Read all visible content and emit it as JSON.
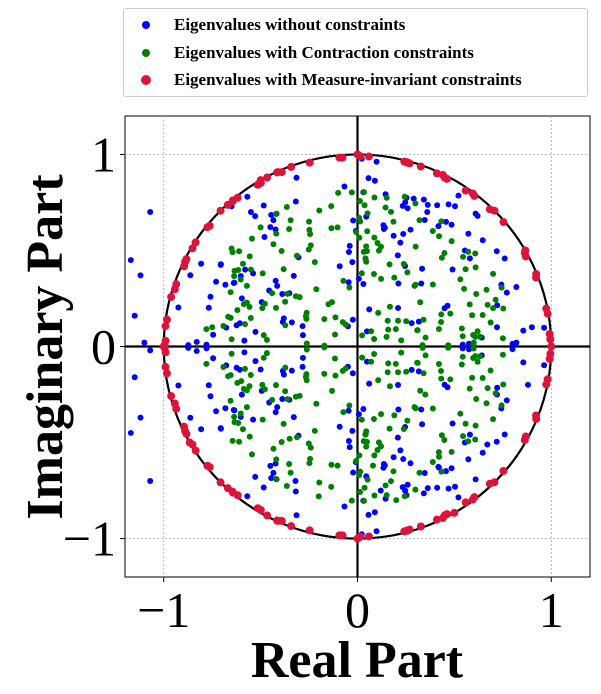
{
  "chart_data": {
    "type": "scatter",
    "title": "",
    "xlabel": "Real Part",
    "ylabel": "Imaginary Part",
    "xlim": [
      -1.2,
      1.2
    ],
    "ylim": [
      -1.2,
      1.2
    ],
    "xticks": [
      {
        "value": -1,
        "label": "−1"
      },
      {
        "value": 0,
        "label": "0"
      },
      {
        "value": 1,
        "label": "1"
      }
    ],
    "yticks": [
      {
        "value": -1,
        "label": "−1"
      },
      {
        "value": 0,
        "label": "0"
      },
      {
        "value": 1,
        "label": "1"
      }
    ],
    "grid": true,
    "unit_circle": true,
    "legend_position": "top (above plot)",
    "series": [
      {
        "name": "Eigenvalues without constraints",
        "color": "#0000ff",
        "approx_count": 260,
        "distribution": "roughly uniform inside the unit disk, symmetric about the real axis; sparse outliers near real part -1.1",
        "points": [
          [
            -1.07,
            0.7
          ],
          [
            -1.17,
            0.45
          ],
          [
            -1.12,
            0.37
          ],
          [
            -1.15,
            0.16
          ],
          [
            -1.1,
            0.02
          ],
          [
            -1.07,
            -0.02
          ],
          [
            -1.15,
            -0.16
          ],
          [
            -1.12,
            -0.37
          ],
          [
            -1.17,
            -0.45
          ],
          [
            -1.07,
            -0.7
          ],
          [
            -0.65,
            0.73
          ],
          [
            -0.55,
            0.7
          ],
          [
            -0.48,
            0.57
          ],
          [
            0.29,
            0.77
          ],
          [
            0.36,
            0.7
          ],
          [
            0.62,
            0.68
          ],
          [
            0.82,
            0.31
          ],
          [
            0.72,
            0.1
          ],
          [
            0.82,
            0.02
          ],
          [
            0.67,
            -0.51
          ],
          [
            -0.32,
            -0.7
          ],
          [
            0.12,
            -0.75
          ],
          [
            0.42,
            -0.63
          ],
          [
            0.72,
            -0.25
          ],
          [
            -0.58,
            0.4
          ],
          [
            -0.5,
            -0.12
          ],
          [
            0.9,
            0.1
          ],
          [
            0.88,
            -0.2
          ]
        ]
      },
      {
        "name": "Eigenvalues with Contraction constraints",
        "color": "#008000",
        "approx_count": 330,
        "distribution": "uniform inside a disk of radius about 0.82, symmetric about the real axis",
        "points": [
          [
            -0.65,
            0.51
          ],
          [
            -0.55,
            0.4
          ],
          [
            -0.25,
            0.65
          ],
          [
            -0.1,
            0.8
          ],
          [
            0.05,
            0.6
          ],
          [
            0.3,
            0.52
          ],
          [
            0.55,
            0.3
          ],
          [
            0.7,
            0.2
          ],
          [
            0.6,
            0.02
          ],
          [
            0.35,
            -0.25
          ],
          [
            0.08,
            -0.62
          ],
          [
            -0.35,
            -0.48
          ],
          [
            -0.6,
            -0.18
          ],
          [
            -0.75,
            0.1
          ],
          [
            0.15,
            0.05
          ],
          [
            -0.15,
            0.22
          ],
          [
            0.42,
            -0.55
          ],
          [
            -0.5,
            0.62
          ],
          [
            0.2,
            -0.8
          ],
          [
            -0.2,
            -0.78
          ]
        ]
      },
      {
        "name": "Eigenvalues with Measure-invariant constraints",
        "color": "#dc143c",
        "approx_count": 116,
        "distribution": "concentrated on the unit circle (|z| about 0.99–1.00), symmetric about the real axis",
        "points": [
          [
            1.0,
            0.0
          ],
          [
            0.0,
            1.0
          ],
          [
            -1.0,
            0.0
          ],
          [
            0.0,
            -1.0
          ],
          [
            0.707,
            0.707
          ],
          [
            -0.707,
            0.707
          ],
          [
            -0.707,
            -0.707
          ],
          [
            0.707,
            -0.707
          ],
          [
            0.866,
            0.5
          ],
          [
            -0.5,
            0.866
          ],
          [
            -0.866,
            -0.5
          ],
          [
            0.5,
            -0.866
          ]
        ]
      }
    ]
  }
}
